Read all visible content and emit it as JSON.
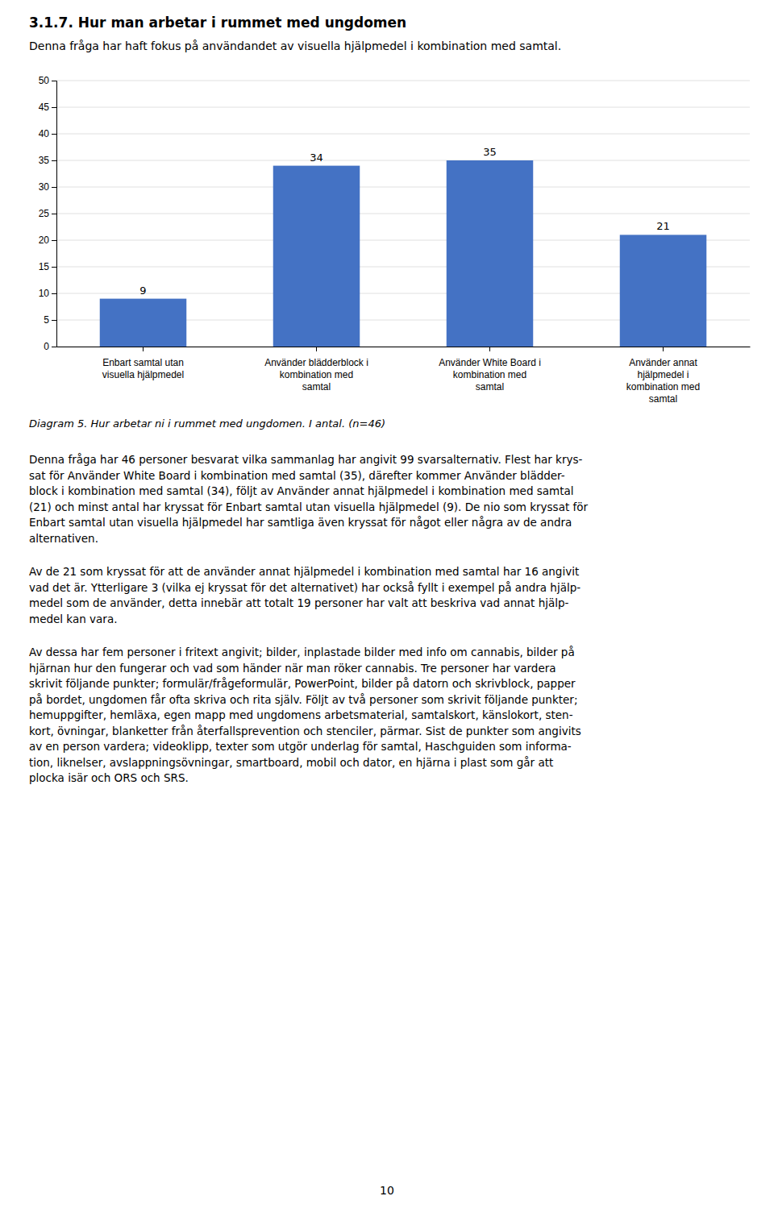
{
  "section_title": "3.1.7.   Hur man arbetar i rummet med ungdomen",
  "intro_text": "Denna fråga har haft fokus på användandet av visuella hjälpmedel i kombination med samtal.",
  "chart_data": {
    "type": "bar",
    "title": "Diagram 5. Hur arbetar ni i rummet med ungdomen. I antal. (n=46)",
    "categories": [
      "Enbart samtal utan\nvisuella hjälpmedel",
      "Använder blädderblock i\nkombination med\nsamtal",
      "Använder White Board i\nkombination med\nsamtal",
      "Använder annat\nhjälpmedel i\nkombination med\nsamtal"
    ],
    "values": [
      9,
      34,
      35,
      21
    ],
    "color": "#4472C4",
    "ylim": [
      0,
      50
    ],
    "yticks": [
      0,
      5,
      10,
      15,
      20,
      25,
      30,
      35,
      40,
      45,
      50
    ],
    "grid": true,
    "data_labels": true
  },
  "paragraphs": [
    "Denna fråga har 46 personer besvarat vilka sammanlag har angivit 99 svarsalternativ. Flest har krys-\nsat för Använder White Board i kombination med samtal (35), därefter kommer Använder blädder-\nblock i kombination med samtal (34), följt av Använder annat hjälpmedel i kombination med samtal\n(21) och minst antal har kryssat för Enbart samtal utan visuella hjälpmedel (9). De nio som kryssat för\nEnbart samtal utan visuella hjälpmedel har samtliga även kryssat för något eller några av de andra\nalternativen.",
    "Av de 21 som kryssat för att de använder annat hjälpmedel i kombination med samtal har 16 angivit\nvad det är. Ytterligare 3 (vilka ej kryssat för det alternativet) har också fyllt i exempel på andra hjälp-\nmedel som de använder, detta innebär att totalt 19 personer har valt att beskriva vad annat hjälp-\nmedel kan vara.",
    "Av dessa har fem personer i fritext angivit; bilder, inplastade bilder med info om cannabis, bilder på\nhjärnan hur den fungerar och vad som händer när man röker cannabis. Tre personer har vardera\nskrivit följande punkter; formulär/frågeformulär, PowerPoint, bilder på datorn och skrivblock, papper\npå bordet, ungdomen får ofta skriva och rita själv. Följt av två personer som skrivit följande punkter;\nhemuppgifter, hemläxa, egen mapp med ungdomens arbetsmaterial, samtalskort, känslokort, sten-\nkort, övningar, blanketter från återfallsprevention och stenciler, pärmar. Sist de punkter som angivits\nav en person vardera; videoklipp, texter som utgör underlag för samtal, Haschguiden som informa-\ntion, liknelser, avslappningsövningar, smartboard, mobil och dator, en hjärna i plast som går att\nplocka isär och ORS och SRS."
  ],
  "page_number": "10"
}
